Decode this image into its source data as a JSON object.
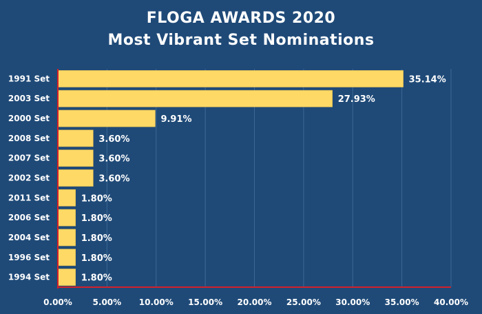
{
  "chart_data": {
    "type": "bar",
    "orientation": "horizontal",
    "title": "FLOGA AWARDS 2020",
    "subtitle": "Most Vibrant Set Nominations",
    "categories": [
      "1991 Set",
      "2003 Set",
      "2000 Set",
      "2008 Set",
      "2007 Set",
      "2002 Set",
      "2011 Set",
      "2006 Set",
      "2004 Set",
      "1996 Set",
      "1994 Set"
    ],
    "values": [
      35.14,
      27.93,
      9.91,
      3.6,
      3.6,
      3.6,
      1.8,
      1.8,
      1.8,
      1.8,
      1.8
    ],
    "value_labels": [
      "35.14%",
      "27.93%",
      "9.91%",
      "3.60%",
      "3.60%",
      "3.60%",
      "1.80%",
      "1.80%",
      "1.80%",
      "1.80%",
      "1.80%"
    ],
    "xticks": [
      "0.00%",
      "5.00%",
      "10.00%",
      "15.00%",
      "20.00%",
      "25.00%",
      "30.00%",
      "35.00%",
      "40.00%"
    ],
    "xlim": [
      0,
      40
    ],
    "xlabel": "",
    "ylabel": "",
    "grid": "vertical",
    "legend": "none",
    "colors": {
      "background": "#1f4a78",
      "bar": "#ffd966",
      "bar_stroke": "#e0b84a",
      "axis": "#d4202a",
      "grid": "#3d6794",
      "text": "#ffffff"
    }
  }
}
